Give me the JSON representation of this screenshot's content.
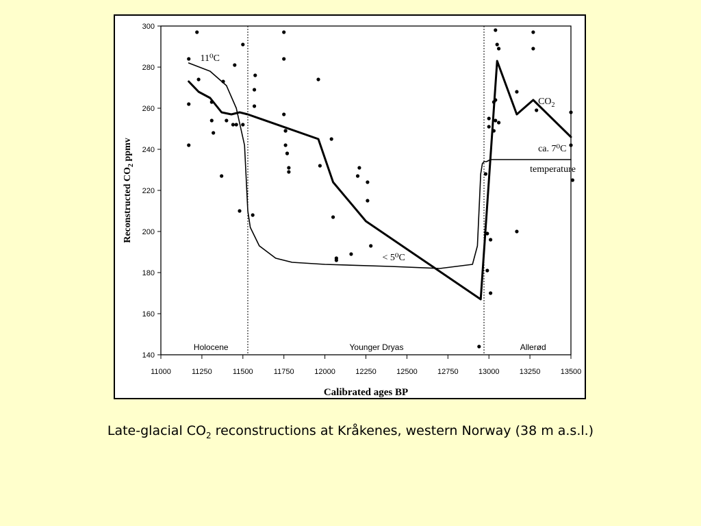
{
  "caption": {
    "prefix": "Late-glacial CO",
    "subscript": "2",
    "suffix": " reconstructions at Kråkenes, western Norway (38 m a.s.l.)"
  },
  "chart_data": {
    "type": "scatter",
    "xlabel": "Calibrated ages BP",
    "ylabel_prefix": "Reconstructed CO",
    "ylabel_sub": "2",
    "ylabel_suffix": " ppmv",
    "xlim": [
      11000,
      13500
    ],
    "ylim": [
      140,
      300
    ],
    "x_ticks": [
      11000,
      11250,
      11500,
      11750,
      12000,
      12250,
      12500,
      12750,
      13000,
      13250,
      13500
    ],
    "y_ticks": [
      140,
      160,
      180,
      200,
      220,
      240,
      260,
      280,
      300
    ],
    "period_boundaries": [
      11530,
      12970
    ],
    "periods": [
      {
        "label": "Holocene",
        "x": 11200
      },
      {
        "label": "Younger Dryas",
        "x": 12150
      },
      {
        "label": "Allerød",
        "x": 13190
      }
    ],
    "annotations": [
      {
        "text": "11⁰C",
        "x": 11240,
        "y": 283
      },
      {
        "text": "< 5⁰C",
        "x": 12350,
        "y": 186
      },
      {
        "text": "ca. 7⁰C",
        "x": 13300,
        "y": 239
      },
      {
        "text": "temperature",
        "x": 13250,
        "y": 229
      },
      {
        "text": "CO",
        "sub": "2",
        "x": 13300,
        "y": 262
      }
    ],
    "series": [
      {
        "kind": "points",
        "x": [
          11170,
          11170,
          11170,
          11220,
          11230,
          11310,
          11310,
          11320,
          11370,
          11380,
          11400,
          11440,
          11450,
          11460,
          11480,
          11500,
          11500,
          11560,
          11570,
          11570,
          11575,
          11750,
          11750,
          11750,
          11760,
          11760,
          11760,
          11770,
          11770,
          11780,
          11780,
          11960,
          11970,
          12040,
          12050,
          12070,
          12070,
          12160,
          12200,
          12210,
          12260,
          12260,
          12280,
          12940,
          12980,
          12990,
          12990,
          13000,
          13000,
          13010,
          13010,
          13030,
          13030,
          13040,
          13040,
          13040,
          13050,
          13060,
          13060,
          13170,
          13170,
          13270,
          13270,
          13290,
          13500,
          13500,
          13510
        ],
        "y": [
          284,
          262,
          242,
          297,
          274,
          263,
          254,
          248,
          227,
          273,
          254,
          252,
          281,
          252,
          210,
          252,
          291,
          208,
          261,
          269,
          276,
          297,
          284,
          257,
          249,
          249,
          242,
          238,
          238,
          231,
          229,
          274,
          232,
          245,
          207,
          187,
          186,
          189,
          227,
          231,
          215,
          224,
          193,
          144,
          228,
          199,
          181,
          255,
          251,
          196,
          170,
          263,
          249,
          264,
          254,
          298,
          291,
          289,
          253,
          268,
          200,
          297,
          289,
          259,
          258,
          242,
          225
        ]
      },
      {
        "kind": "line",
        "name": "CO2",
        "x": [
          11170,
          11230,
          11300,
          11370,
          11430,
          11480,
          11530,
          11960,
          12050,
          12250,
          12950,
          13050,
          13170,
          13270,
          13500
        ],
        "y": [
          273,
          268,
          265,
          258,
          257,
          258,
          257,
          245,
          224,
          205,
          167,
          283,
          257,
          264,
          246
        ]
      },
      {
        "kind": "line",
        "name": "temperature",
        "x": [
          11170,
          11300,
          11400,
          11460,
          11510,
          11530,
          11545,
          11600,
          11700,
          11800,
          12000,
          12400,
          12700,
          12900,
          12930,
          12950,
          12960,
          12970,
          12985,
          13010,
          13100,
          13300,
          13500
        ],
        "y": [
          282,
          278,
          271,
          260,
          242,
          210,
          202,
          193,
          187,
          185,
          184,
          183,
          182,
          184,
          193,
          228,
          233,
          234,
          234,
          235,
          235,
          235,
          235
        ]
      }
    ]
  }
}
